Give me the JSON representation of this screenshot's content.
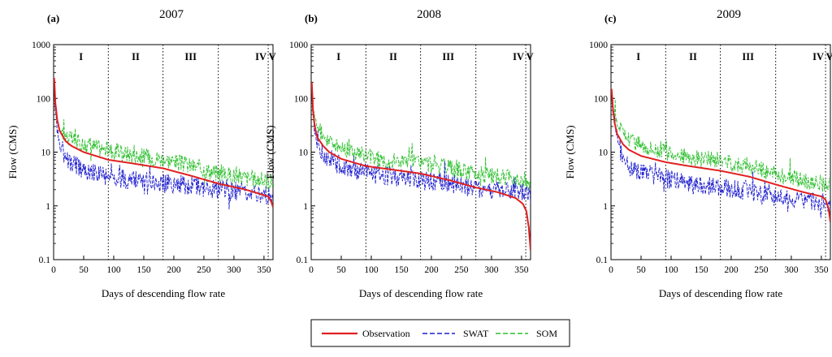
{
  "chart_data": {
    "type": "line",
    "figure_xlabel": "Days of descending flow rate",
    "figure_ylabel": "Flow (CMS)",
    "xlim": [
      0,
      365
    ],
    "ylim": [
      0.1,
      1000
    ],
    "yscale": "log",
    "xticks": [
      0,
      50,
      100,
      150,
      200,
      250,
      300,
      350
    ],
    "yticks": [
      0.1,
      1,
      10,
      100,
      1000
    ],
    "ytick_labels": [
      "0.1",
      "1",
      "10",
      "100",
      "1000"
    ],
    "period_boundaries": [
      91,
      182,
      274,
      357
    ],
    "legend_position": "bottom-center",
    "series_names": [
      "Observation",
      "SWAT",
      "SOM"
    ],
    "series_colors": {
      "Observation": "#e02020",
      "SWAT": "#1f1fd0",
      "SOM": "#2fc02f"
    },
    "panels": [
      {
        "letter": "(a)",
        "year": "2007",
        "period_labels": [
          "I",
          "II",
          "III",
          "IV",
          "V"
        ],
        "series": [
          {
            "name": "Observation",
            "x": [
              1,
              3,
              6,
              10,
              20,
              30,
              50,
              91,
              130,
              182,
              230,
              274,
              320,
              357,
              362,
              365
            ],
            "y": [
              240,
              80,
              40,
              25,
              16,
              13,
              10,
              7.2,
              6.2,
              5.0,
              3.6,
              2.6,
              2.0,
              1.5,
              1.2,
              0.95
            ]
          },
          {
            "name": "SWAT",
            "x": [
              1,
              5,
              10,
              20,
              30,
              50,
              91,
              130,
              182,
              230,
              274,
              320,
              357,
              365
            ],
            "y": [
              110,
              35,
              14,
              8,
              6,
              4.5,
              3.5,
              3.0,
              2.6,
              2.4,
              2.0,
              1.8,
              1.6,
              1.6
            ]
          },
          {
            "name": "SOM",
            "x": [
              1,
              5,
              10,
              20,
              30,
              50,
              91,
              130,
              182,
              230,
              274,
              320,
              357,
              365
            ],
            "y": [
              140,
              45,
              28,
              20,
              17,
              14,
              11,
              9,
              7.5,
              5.5,
              4.0,
              3.3,
              2.9,
              2.8
            ]
          }
        ]
      },
      {
        "letter": "(b)",
        "year": "2008",
        "period_labels": [
          "I",
          "II",
          "III",
          "IV",
          "V"
        ],
        "series": [
          {
            "name": "Observation",
            "x": [
              1,
              3,
              6,
              10,
              20,
              30,
              50,
              91,
              130,
              182,
              230,
              274,
              310,
              340,
              352,
              358,
              362,
              365
            ],
            "y": [
              200,
              60,
              30,
              19,
              13,
              10,
              7.5,
              5.5,
              4.8,
              4.0,
              3.0,
              2.2,
              1.8,
              1.4,
              1.1,
              0.8,
              0.4,
              0.15
            ]
          },
          {
            "name": "SWAT",
            "x": [
              1,
              5,
              10,
              20,
              30,
              50,
              91,
              130,
              182,
              230,
              274,
              320,
              357,
              365
            ],
            "y": [
              130,
              30,
              14,
              9,
              7,
              5.5,
              4.2,
              3.6,
              3.0,
              2.6,
              2.1,
              1.9,
              1.7,
              1.6
            ]
          },
          {
            "name": "SOM",
            "x": [
              1,
              5,
              10,
              20,
              30,
              50,
              91,
              130,
              182,
              230,
              274,
              320,
              357,
              365
            ],
            "y": [
              150,
              50,
              30,
              20,
              16,
              12,
              8.5,
              7,
              6.5,
              5,
              4,
              3.4,
              3.0,
              2.8
            ]
          }
        ]
      },
      {
        "letter": "(c)",
        "year": "2009",
        "period_labels": [
          "I",
          "II",
          "III",
          "IV",
          "V"
        ],
        "series": [
          {
            "name": "Observation",
            "x": [
              1,
              3,
              6,
              10,
              20,
              30,
              50,
              91,
              130,
              182,
              230,
              274,
              320,
              350,
              357,
              362,
              365
            ],
            "y": [
              150,
              70,
              35,
              22,
              14,
              11,
              8.5,
              6.5,
              5.5,
              4.5,
              3.5,
              2.5,
              1.8,
              1.5,
              1.3,
              0.9,
              0.5
            ]
          },
          {
            "name": "SWAT",
            "x": [
              1,
              5,
              10,
              20,
              30,
              50,
              91,
              130,
              182,
              230,
              274,
              320,
              357,
              365
            ],
            "y": [
              100,
              40,
              16,
              8,
              5.5,
              4,
              3.2,
              2.6,
              2.2,
              1.8,
              1.4,
              1.2,
              1.1,
              0.8
            ]
          },
          {
            "name": "SOM",
            "x": [
              1,
              5,
              10,
              20,
              30,
              50,
              91,
              130,
              182,
              230,
              274,
              320,
              357,
              365
            ],
            "y": [
              130,
              55,
              35,
              22,
              18,
              14,
              10,
              8,
              7,
              5.5,
              4.0,
              3.0,
              2.6,
              2.4
            ]
          }
        ]
      }
    ]
  }
}
